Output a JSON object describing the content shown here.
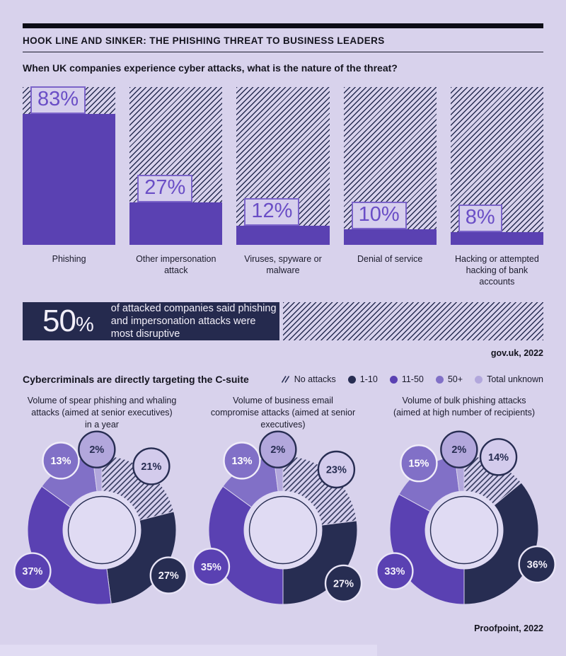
{
  "header": {
    "title": "HOOK LINE AND SINKER: THE PHISHING THREAT TO BUSINESS LEADERS"
  },
  "callout": {
    "percent": "50",
    "percent_sign": "%",
    "text": "of attacked companies said phishing and impersonation attacks were most disruptive"
  },
  "colors": {
    "background": "#d8d2ec",
    "navy": "#252a4e",
    "slice_navy": "#272d52",
    "purple": "#5a41b2",
    "medium_purple": "#8170c7",
    "light_purple": "#b2a7dc",
    "hatch_swatch_bg": "#d3cbec",
    "donut_hole": "#e0dbf3",
    "pct_box_border": "#7b64c9",
    "pct_box_text": "#6a4ec6"
  },
  "chart_data": [
    {
      "type": "bar",
      "title": "When UK companies experience cyber attacks, what is the nature of the threat?",
      "categories": [
        "Phishing",
        "Other impersonation attack",
        "Viruses, spyware or malware",
        "Denial of service",
        "Hacking or attempted hacking of bank accounts"
      ],
      "values": [
        83,
        27,
        12,
        10,
        8
      ],
      "unit": "%",
      "ylim": [
        0,
        100
      ],
      "grid": false,
      "note": "bars drawn over full-height hatched columns representing 100%",
      "source": "gov.uk, 2022"
    },
    {
      "type": "pie",
      "title": "Cybercriminals are directly targeting the C-suite",
      "legend": [
        "No attacks",
        "1-10",
        "11-50",
        "50+",
        "Total unknown"
      ],
      "legend_position": "top-right",
      "charts": [
        {
          "title": "Volume of spear phishing and whaling attacks (aimed at senior executives) in a year",
          "values": [
            21,
            27,
            37,
            13,
            2
          ]
        },
        {
          "title": "Volume of business email compromise attacks (aimed at senior executives)",
          "values": [
            23,
            27,
            35,
            13,
            2
          ]
        },
        {
          "title": "Volume of bulk phishing attacks (aimed at high number of recipients)",
          "values": [
            14,
            36,
            33,
            15,
            2
          ]
        }
      ],
      "unit": "%",
      "source": "Proofpoint, 2022"
    }
  ]
}
